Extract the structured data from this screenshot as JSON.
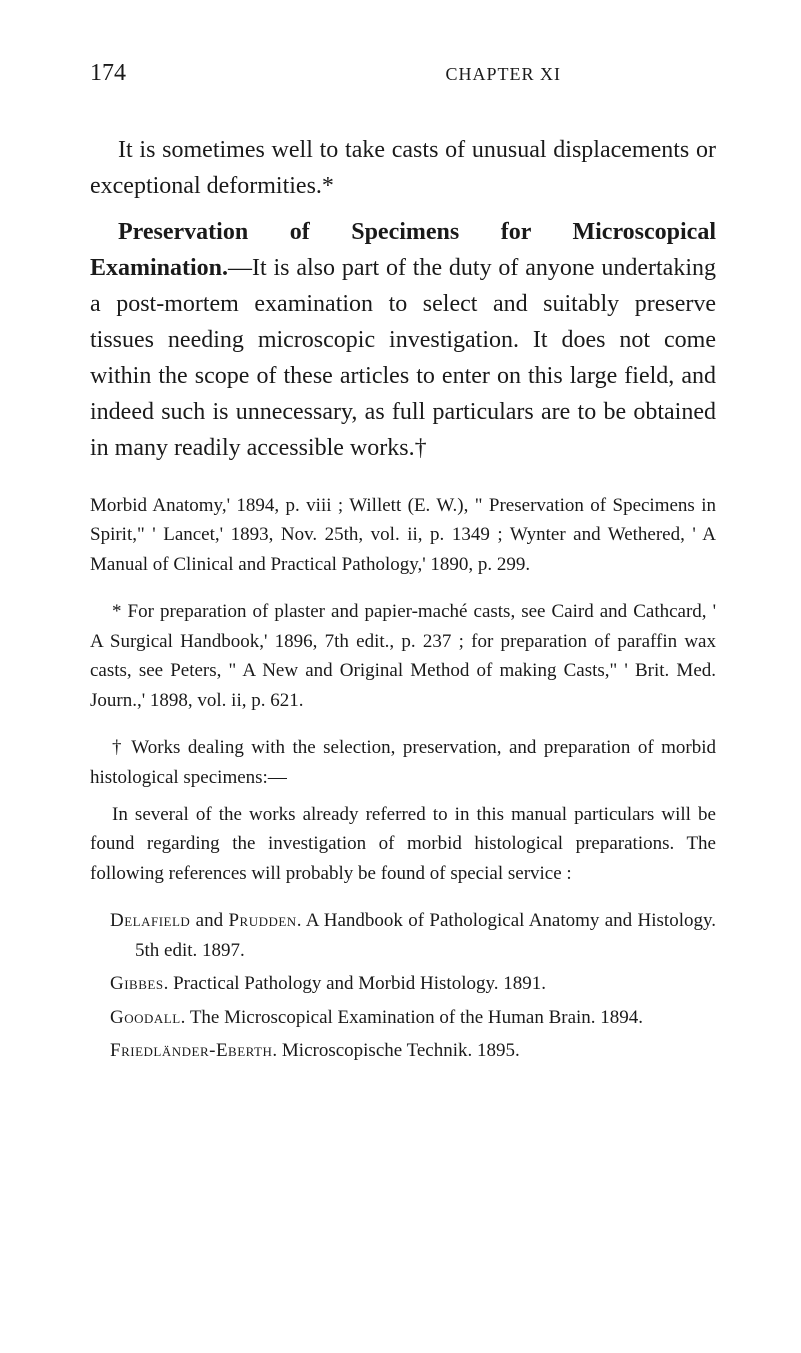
{
  "header": {
    "page_number": "174",
    "chapter_title": "CHAPTER XI"
  },
  "paragraphs": {
    "p1": "It is sometimes well to take casts of unusual displacements or exceptional deformities.*",
    "p2_a": "Preservation of Specimens for Microscopical Examination.",
    "p2_b": "—It is also part of the duty of anyone undertaking a post-mortem examination to select and suitably preserve tissues needing microscopic investigation. It does not come within the scope of these articles to enter on this large field, and indeed such is unnecessary, as full particulars are to be obtained in many readily accessible works.†"
  },
  "small_paragraphs": {
    "sp1": "Morbid Anatomy,' 1894, p. viii ; Willett (E. W.), \" Preservation of Specimens in Spirit,\" ' Lancet,' 1893, Nov. 25th, vol. ii, p. 1349 ; Wynter and Wethered, ' A Manual of Clinical and Practical Pathology,' 1890, p. 299.",
    "sp2": "* For preparation of plaster and papier-maché casts, see Caird and Cathcard, ' A Surgical Handbook,' 1896, 7th edit., p. 237 ; for preparation of paraffin wax casts, see Peters, \" A New and Original Method of making Casts,\" ' Brit. Med. Journ.,' 1898, vol. ii, p. 621.",
    "sp3": "† Works dealing with the selection, preservation, and preparation of morbid histological specimens:—",
    "sp4": "In several of the works already referred to in this manual particulars will be found regarding the investigation of morbid histological preparations. The following references will probably be found of special service :"
  },
  "references": {
    "r1_author": "Delafield",
    "r1_and": " and ",
    "r1_author2": "Prudden",
    "r1_text": ". A Handbook of Pathological Anatomy and Histology. 5th edit. 1897.",
    "r2_author": "Gibbes",
    "r2_text": ". Practical Pathology and Morbid Histology. 1891.",
    "r3_author": "Goodall",
    "r3_text": ". The Microscopical Examination of the Human Brain. 1894.",
    "r4_author": "Friedländer-Eberth",
    "r4_text": ". Microscopische Technik. 1895."
  }
}
